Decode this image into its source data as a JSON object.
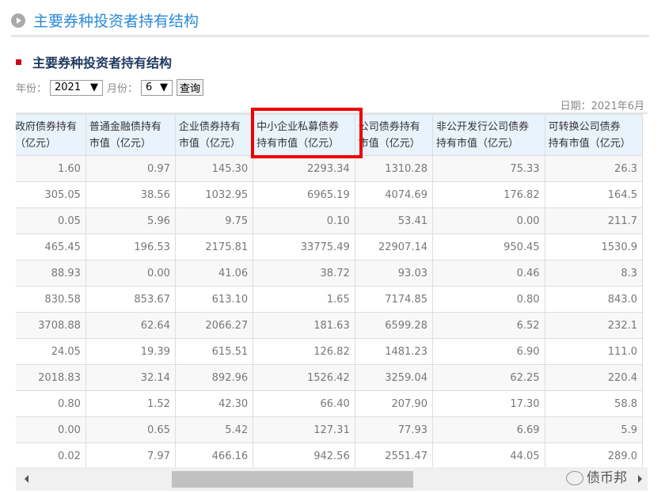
{
  "header": {
    "title": "主要券种投资者持有结构"
  },
  "section": {
    "title": "主要券种投资者持有结构"
  },
  "filters": {
    "year_label": "年份：",
    "year_value": "2021",
    "month_label": "月份：",
    "month_value": "6",
    "query_label": "查询"
  },
  "date_label": "日期：2021年6月",
  "table": {
    "columns": [
      [
        "政府债券持有",
        "（亿元）"
      ],
      [
        "普通金融债持有",
        "市值（亿元）"
      ],
      [
        "企业债券持有",
        "市值（亿元）"
      ],
      [
        "中小企业私募债券",
        "持有市值（亿元）"
      ],
      [
        "公司债券持有",
        "市值（亿元）"
      ],
      [
        "非公开发行公司债券",
        "持有市值（亿元）"
      ],
      [
        "可转换公司债券",
        "持有市值（亿元）"
      ]
    ],
    "highlighted_column": 3,
    "rows": [
      [
        "1.60",
        "0.97",
        "145.30",
        "2293.34",
        "1310.28",
        "75.33",
        "26.3"
      ],
      [
        "305.05",
        "38.56",
        "1032.95",
        "6965.19",
        "4074.69",
        "176.82",
        "164.5"
      ],
      [
        "0.05",
        "5.96",
        "9.75",
        "0.10",
        "53.41",
        "0.00",
        "211.7"
      ],
      [
        "465.45",
        "196.53",
        "2175.81",
        "33775.49",
        "22907.14",
        "950.45",
        "1530.9"
      ],
      [
        "88.93",
        "0.00",
        "41.06",
        "38.72",
        "93.03",
        "0.46",
        "8.3"
      ],
      [
        "830.58",
        "853.67",
        "613.10",
        "1.65",
        "7174.85",
        "0.80",
        "843.0"
      ],
      [
        "3708.88",
        "62.64",
        "2066.27",
        "181.63",
        "6599.28",
        "6.52",
        "232.1"
      ],
      [
        "24.05",
        "19.39",
        "615.51",
        "126.82",
        "1481.23",
        "6.90",
        "111.0"
      ],
      [
        "2018.83",
        "32.14",
        "892.96",
        "1526.42",
        "3259.04",
        "62.25",
        "220.4"
      ],
      [
        "0.80",
        "1.52",
        "42.30",
        "66.40",
        "207.90",
        "17.30",
        "58.8"
      ],
      [
        "0.00",
        "0.65",
        "5.42",
        "127.31",
        "77.93",
        "6.69",
        "5.9"
      ],
      [
        "0.02",
        "7.97",
        "466.16",
        "942.56",
        "2551.47",
        "44.05",
        "289.0"
      ]
    ]
  },
  "watermark": "债币邦",
  "colors": {
    "title_blue": "#2a8ad8",
    "highlight": "#e00000",
    "header_bg": "#e8f3fc"
  }
}
